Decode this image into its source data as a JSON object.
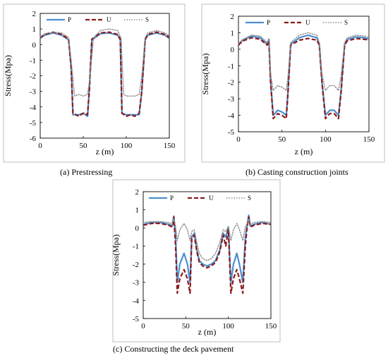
{
  "colors": {
    "P": "#4a8fd0",
    "U": "#8b1a1a",
    "S": "#8c8c8c"
  },
  "chart_data": [
    {
      "type": "line",
      "caption": "(a) Prestressing",
      "xlabel": "z (m)",
      "ylabel": "Stress(Mpa)",
      "xlim": [
        0,
        150
      ],
      "ylim": [
        -6,
        2
      ],
      "xticks": [
        0,
        50,
        100,
        150
      ],
      "yticks": [
        -6,
        -5,
        -4,
        -3,
        -2,
        -1,
        0,
        1,
        2
      ],
      "legend": "top-center",
      "series": [
        {
          "name": "P",
          "style": "solid",
          "x": [
            0,
            5,
            15,
            25,
            33,
            36,
            38,
            45,
            50,
            55,
            57,
            60,
            70,
            80,
            90,
            93,
            95,
            100,
            105,
            110,
            115,
            118,
            122,
            125,
            135,
            145,
            150
          ],
          "y": [
            0.4,
            0.6,
            0.75,
            0.6,
            0.3,
            -1.5,
            -4.5,
            -4.5,
            -4.4,
            -4.6,
            -3.0,
            0.3,
            0.7,
            0.75,
            0.6,
            0.3,
            -4.4,
            -4.5,
            -4.5,
            -4.5,
            -4.5,
            -3.0,
            0.3,
            0.6,
            0.75,
            0.6,
            0.4
          ]
        },
        {
          "name": "U",
          "style": "dashed",
          "x": [
            0,
            5,
            15,
            25,
            33,
            36,
            38,
            45,
            50,
            55,
            57,
            60,
            70,
            80,
            90,
            93,
            95,
            100,
            105,
            110,
            115,
            118,
            122,
            125,
            135,
            145,
            150
          ],
          "y": [
            0.45,
            0.65,
            0.8,
            0.65,
            0.35,
            -1.5,
            -4.4,
            -4.6,
            -4.4,
            -4.5,
            -3.0,
            0.35,
            0.75,
            0.8,
            0.65,
            0.35,
            -4.4,
            -4.6,
            -4.5,
            -4.6,
            -4.4,
            -3.0,
            0.35,
            0.65,
            0.8,
            0.65,
            0.45
          ]
        },
        {
          "name": "S",
          "style": "dotted",
          "x": [
            0,
            5,
            15,
            25,
            33,
            36,
            40,
            45,
            50,
            55,
            58,
            62,
            70,
            80,
            90,
            94,
            97,
            100,
            105,
            110,
            115,
            118,
            122,
            125,
            135,
            145,
            150
          ],
          "y": [
            0.5,
            0.7,
            0.8,
            0.75,
            0.45,
            -1.0,
            -3.3,
            -3.2,
            -3.3,
            -3.2,
            -2.0,
            0.45,
            0.9,
            1.0,
            0.9,
            0.4,
            -3.2,
            -3.3,
            -3.3,
            -3.3,
            -3.2,
            -2.0,
            0.45,
            0.75,
            0.9,
            0.75,
            0.55
          ]
        }
      ]
    },
    {
      "type": "line",
      "caption": "(b) Casting construction joints",
      "xlabel": "z (m)",
      "ylabel": "Stress(Mpa)",
      "xlim": [
        0,
        150
      ],
      "ylim": [
        -5,
        2
      ],
      "xticks": [
        0,
        50,
        100,
        150
      ],
      "yticks": [
        -5,
        -4,
        -3,
        -2,
        -1,
        0,
        1,
        2
      ],
      "legend": "top-center",
      "series": [
        {
          "name": "P",
          "style": "solid",
          "x": [
            0,
            5,
            15,
            25,
            33,
            35,
            37,
            40,
            45,
            50,
            55,
            57,
            60,
            70,
            80,
            90,
            93,
            96,
            100,
            105,
            110,
            115,
            118,
            122,
            125,
            135,
            145,
            150
          ],
          "y": [
            0.3,
            0.55,
            0.8,
            0.7,
            0.3,
            0.6,
            -2.0,
            -4.0,
            -3.7,
            -3.8,
            -4.0,
            -2.5,
            0.3,
            0.7,
            0.85,
            0.7,
            0.3,
            -2.0,
            -4.0,
            -3.7,
            -3.7,
            -4.0,
            -2.5,
            0.3,
            0.6,
            0.75,
            0.7,
            0.6
          ]
        },
        {
          "name": "U",
          "style": "dashed",
          "x": [
            0,
            5,
            15,
            25,
            33,
            35,
            37,
            40,
            45,
            50,
            55,
            57,
            60,
            70,
            80,
            90,
            93,
            96,
            100,
            105,
            110,
            115,
            118,
            122,
            125,
            135,
            145,
            150
          ],
          "y": [
            0.25,
            0.5,
            0.7,
            0.6,
            0.25,
            0.5,
            -2.0,
            -4.2,
            -3.9,
            -4.0,
            -4.2,
            -2.6,
            0.25,
            0.55,
            0.65,
            0.55,
            0.25,
            -2.0,
            -4.2,
            -3.9,
            -3.9,
            -4.2,
            -2.6,
            0.25,
            0.5,
            0.65,
            0.6,
            0.55
          ]
        },
        {
          "name": "S",
          "style": "dotted",
          "x": [
            0,
            5,
            15,
            25,
            33,
            35,
            37,
            40,
            45,
            50,
            55,
            57,
            60,
            70,
            80,
            90,
            93,
            96,
            100,
            105,
            110,
            115,
            118,
            122,
            125,
            135,
            145,
            150
          ],
          "y": [
            0.35,
            0.6,
            0.85,
            0.8,
            0.4,
            0.65,
            -1.5,
            -2.5,
            -2.2,
            -2.3,
            -2.5,
            -1.6,
            0.4,
            0.85,
            1.0,
            0.85,
            0.4,
            -1.5,
            -2.5,
            -2.2,
            -2.2,
            -2.5,
            -1.6,
            0.4,
            0.7,
            0.85,
            0.8,
            0.7
          ]
        }
      ]
    },
    {
      "type": "line",
      "caption": "(c) Constructing the deck pavement",
      "xlabel": "z (m)",
      "ylabel": "Stress(Mpa)",
      "xlim": [
        0,
        150
      ],
      "ylim": [
        -5,
        2
      ],
      "xticks": [
        0,
        50,
        100,
        150
      ],
      "yticks": [
        -5,
        -4,
        -3,
        -2,
        -1,
        0,
        1,
        2
      ],
      "legend": "top-center",
      "series": [
        {
          "name": "P",
          "style": "solid",
          "x": [
            0,
            10,
            20,
            30,
            34,
            36,
            38,
            40,
            43,
            48,
            52,
            55,
            57,
            60,
            63,
            66,
            70,
            75,
            80,
            85,
            90,
            94,
            97,
            100,
            103,
            106,
            110,
            113,
            117,
            120,
            122,
            124,
            126,
            130,
            140,
            150
          ],
          "y": [
            0.2,
            0.3,
            0.3,
            0.2,
            0.1,
            0.65,
            -0.5,
            -3.0,
            -2.0,
            -1.4,
            -2.0,
            -3.0,
            -0.5,
            -0.3,
            -1.2,
            -1.8,
            -2.0,
            -2.1,
            -2.0,
            -1.8,
            -1.2,
            -0.3,
            -0.5,
            0.0,
            -3.0,
            -2.0,
            -1.4,
            -2.0,
            -3.0,
            -0.5,
            0.1,
            0.7,
            0.1,
            0.2,
            0.3,
            0.2
          ]
        },
        {
          "name": "U",
          "style": "dashed",
          "x": [
            0,
            10,
            20,
            30,
            34,
            36,
            38,
            40,
            43,
            48,
            52,
            55,
            57,
            60,
            63,
            66,
            70,
            75,
            80,
            85,
            90,
            94,
            97,
            100,
            103,
            106,
            110,
            113,
            117,
            120,
            122,
            124,
            126,
            130,
            140,
            150
          ],
          "y": [
            0.15,
            0.25,
            0.25,
            0.15,
            0.05,
            0.6,
            -1.0,
            -3.6,
            -2.8,
            -2.3,
            -2.8,
            -3.6,
            -0.6,
            -0.4,
            -1.3,
            -1.9,
            -2.1,
            -2.2,
            -2.1,
            -1.9,
            -1.3,
            -0.4,
            -1.0,
            -0.1,
            -3.6,
            -2.8,
            -2.3,
            -2.8,
            -3.6,
            -1.0,
            0.05,
            0.6,
            0.05,
            0.15,
            0.25,
            0.2
          ]
        },
        {
          "name": "S",
          "style": "dotted",
          "x": [
            0,
            10,
            20,
            30,
            34,
            36,
            38,
            40,
            43,
            48,
            52,
            55,
            57,
            60,
            63,
            66,
            70,
            75,
            80,
            85,
            90,
            94,
            97,
            100,
            103,
            106,
            110,
            113,
            117,
            120,
            122,
            124,
            126,
            130,
            140,
            150
          ],
          "y": [
            0.3,
            0.35,
            0.35,
            0.3,
            0.2,
            0.5,
            0.1,
            -0.7,
            -0.1,
            0.25,
            -0.1,
            -0.7,
            -0.2,
            -0.1,
            -0.8,
            -1.4,
            -1.7,
            -1.8,
            -1.7,
            -1.4,
            -0.8,
            -0.1,
            -0.2,
            0.1,
            -0.7,
            -0.1,
            0.25,
            -0.1,
            -0.7,
            0.1,
            0.2,
            0.5,
            0.2,
            0.3,
            0.35,
            0.3
          ]
        }
      ]
    }
  ]
}
